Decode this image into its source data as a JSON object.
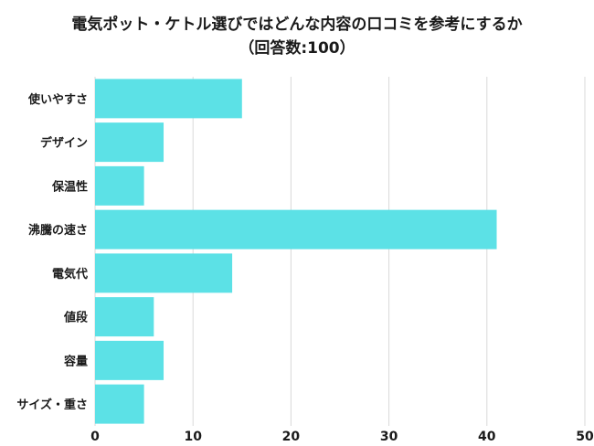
{
  "chart_data": {
    "type": "bar",
    "orientation": "horizontal",
    "title": "電気ポット・ケトル選びではどんな内容の口コミを参考にするか",
    "subtitle": "（回答数:100）",
    "categories": [
      "使いやすさ",
      "デザイン",
      "保温性",
      "沸騰の速さ",
      "電気代",
      "値段",
      "容量",
      "サイズ・重さ"
    ],
    "values": [
      15,
      7,
      5,
      41,
      14,
      6,
      7,
      5
    ],
    "xlim": [
      0,
      50
    ],
    "xticks": [
      "0",
      "10",
      "20",
      "30",
      "40",
      "50"
    ],
    "grid": true,
    "bar_color": "#5ce1e6",
    "grid_color": "#d9d9d9"
  }
}
